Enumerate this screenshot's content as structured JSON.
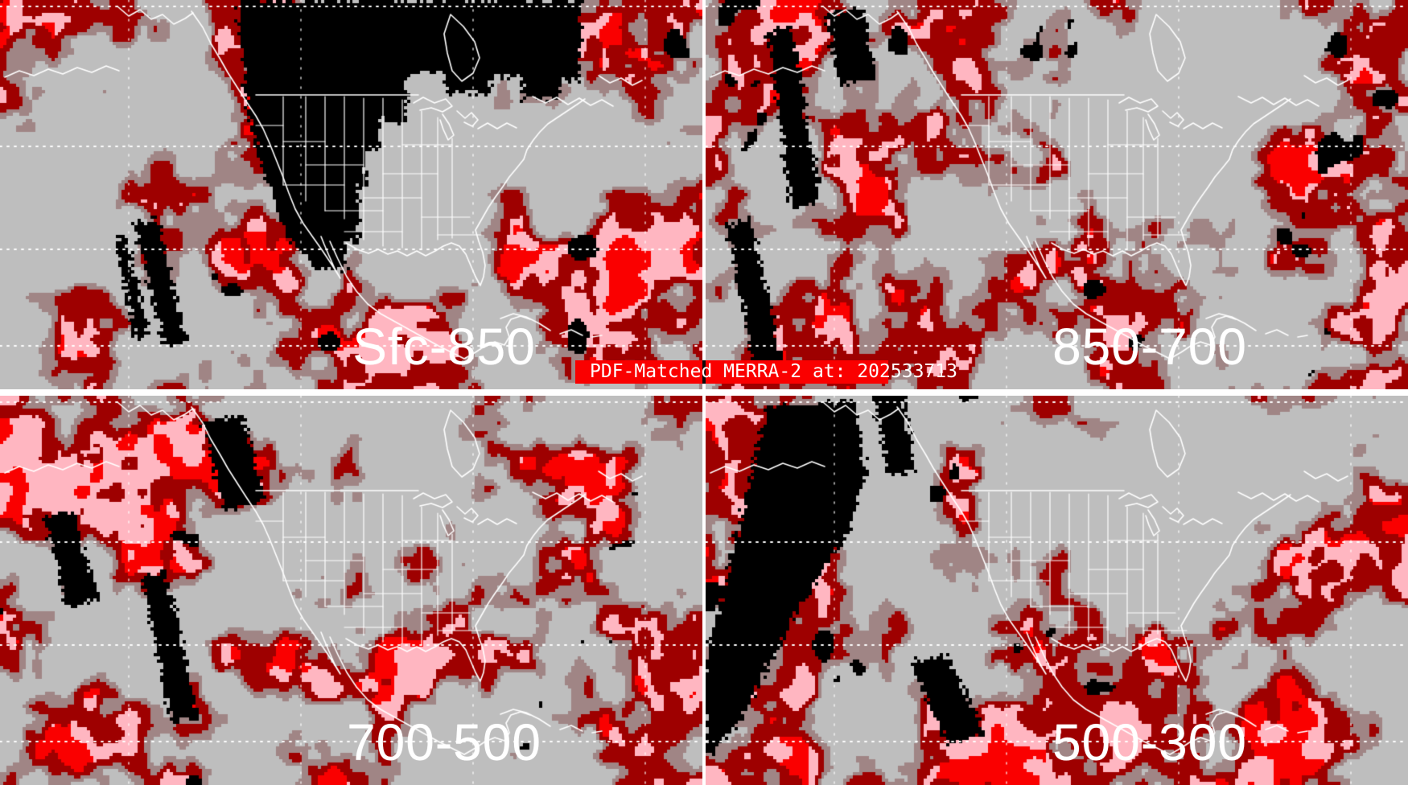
{
  "banner": {
    "text": "PDF-Matched MERRA-2 at: 202533713"
  },
  "panels": [
    {
      "id": "sfc-850",
      "label": "Sfc-850",
      "position": "top-left"
    },
    {
      "id": "850-700",
      "label": "850-700",
      "position": "top-right"
    },
    {
      "id": "700-500",
      "label": "700-500",
      "position": "bottom-left"
    },
    {
      "id": "500-300",
      "label": "500-300",
      "position": "bottom-right"
    }
  ],
  "palette": {
    "background": "#bebebe",
    "light": "#a08585",
    "moderate": "#9e0000",
    "heavy": "#fa0000",
    "extreme": "#ffb6c1",
    "missing": "#000000",
    "outline": "#ffffff",
    "graticule": "#ffffff",
    "divider": "#ffffff",
    "banner_background": "#fa0000",
    "banner_text": "#ffffff",
    "label_text": "#ffffff"
  }
}
